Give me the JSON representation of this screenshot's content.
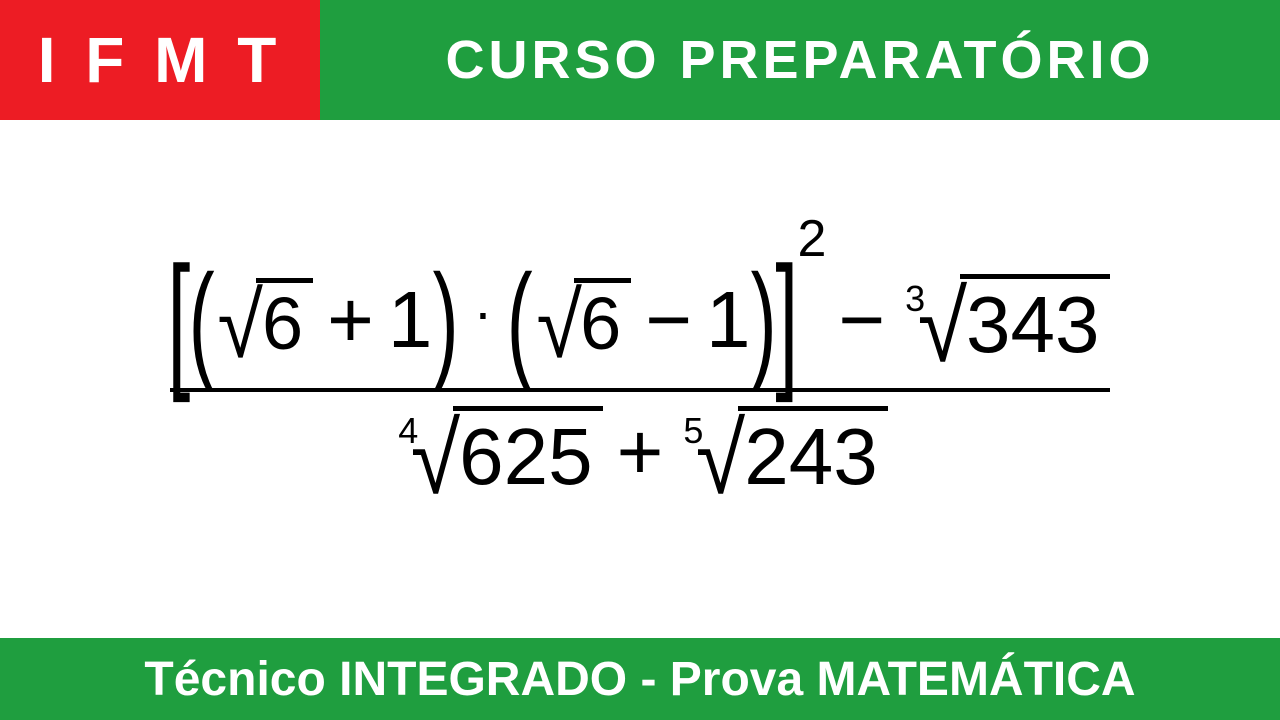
{
  "colors": {
    "red": "#ed1c24",
    "green": "#1f9e3f",
    "white": "#ffffff",
    "black": "#000000"
  },
  "header": {
    "left_text": "I F M T",
    "left_bg": "#ed1c24",
    "left_color": "#ffffff",
    "left_fontsize": 64,
    "right_text": "CURSO PREPARATÓRIO",
    "right_bg": "#1f9e3f",
    "right_color": "#ffffff",
    "right_fontsize": 54
  },
  "footer": {
    "text": "Técnico INTEGRADO - Prova MATEMÁTICA",
    "bg": "#1f9e3f",
    "color": "#ffffff",
    "fontsize": 48
  },
  "equation": {
    "numerator": {
      "bracket_group": {
        "exponent": "2",
        "paren1": {
          "root_radicand": "6",
          "op": "+",
          "term": "1"
        },
        "multiply": "·",
        "paren2": {
          "root_radicand": "6",
          "op": "−",
          "term": "1"
        }
      },
      "minus": "−",
      "cube_root": {
        "index": "3",
        "radicand": "343"
      }
    },
    "denominator": {
      "root1": {
        "index": "4",
        "radicand": "625"
      },
      "plus": "+",
      "root2": {
        "index": "5",
        "radicand": "243"
      }
    }
  }
}
